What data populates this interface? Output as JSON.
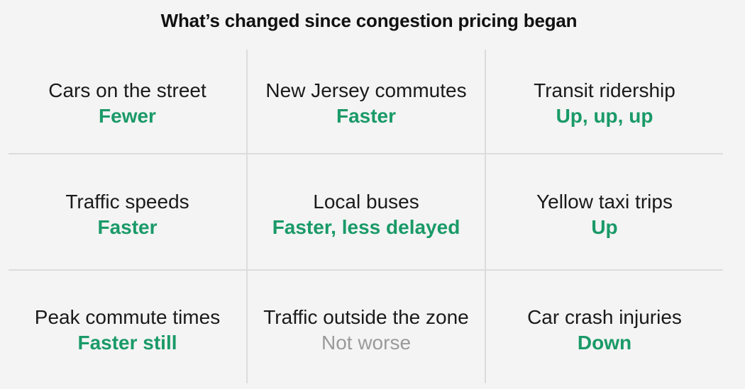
{
  "title": "What’s changed since congestion pricing began",
  "colors": {
    "positive": "#1a9a68",
    "neutral": "#9a9a9a",
    "divider": "#dcdcdc"
  },
  "cells": [
    {
      "label": "Cars on the street",
      "value": "Fewer",
      "status": "positive"
    },
    {
      "label": "New Jersey commutes",
      "value": "Faster",
      "status": "positive"
    },
    {
      "label": "Transit ridership",
      "value": "Up, up, up",
      "status": "positive"
    },
    {
      "label": "Traffic speeds",
      "value": "Faster",
      "status": "positive"
    },
    {
      "label": "Local buses",
      "value": "Faster, less delayed",
      "status": "positive"
    },
    {
      "label": "Yellow taxi trips",
      "value": "Up",
      "status": "positive"
    },
    {
      "label": "Peak commute times",
      "value": "Faster still",
      "status": "positive"
    },
    {
      "label": "Traffic outside the zone",
      "value": "Not worse",
      "status": "neutral"
    },
    {
      "label": "Car crash injuries",
      "value": "Down",
      "status": "positive"
    }
  ]
}
